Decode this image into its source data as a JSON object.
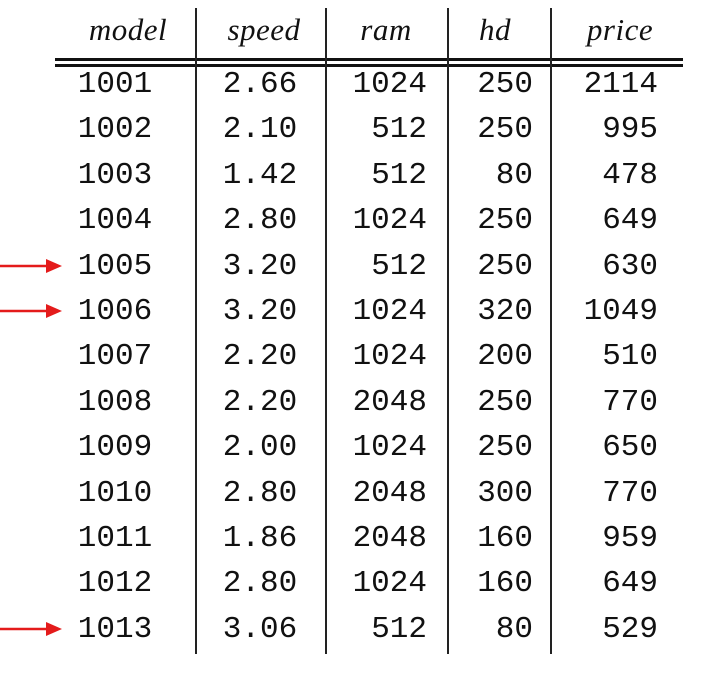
{
  "table": {
    "columns": [
      "model",
      "speed",
      "ram",
      "hd",
      "price"
    ],
    "rows": [
      {
        "model": "1001",
        "speed": "2.66",
        "ram": "1024",
        "hd": "250",
        "price": "2114",
        "marked": false
      },
      {
        "model": "1002",
        "speed": "2.10",
        "ram": "512",
        "hd": "250",
        "price": "995",
        "marked": false
      },
      {
        "model": "1003",
        "speed": "1.42",
        "ram": "512",
        "hd": "80",
        "price": "478",
        "marked": false
      },
      {
        "model": "1004",
        "speed": "2.80",
        "ram": "1024",
        "hd": "250",
        "price": "649",
        "marked": false
      },
      {
        "model": "1005",
        "speed": "3.20",
        "ram": "512",
        "hd": "250",
        "price": "630",
        "marked": true
      },
      {
        "model": "1006",
        "speed": "3.20",
        "ram": "1024",
        "hd": "320",
        "price": "1049",
        "marked": true
      },
      {
        "model": "1007",
        "speed": "2.20",
        "ram": "1024",
        "hd": "200",
        "price": "510",
        "marked": false
      },
      {
        "model": "1008",
        "speed": "2.20",
        "ram": "2048",
        "hd": "250",
        "price": "770",
        "marked": false
      },
      {
        "model": "1009",
        "speed": "2.00",
        "ram": "1024",
        "hd": "250",
        "price": "650",
        "marked": false
      },
      {
        "model": "1010",
        "speed": "2.80",
        "ram": "2048",
        "hd": "300",
        "price": "770",
        "marked": false
      },
      {
        "model": "1011",
        "speed": "1.86",
        "ram": "2048",
        "hd": "160",
        "price": "959",
        "marked": false
      },
      {
        "model": "1012",
        "speed": "2.80",
        "ram": "1024",
        "hd": "160",
        "price": "649",
        "marked": false
      },
      {
        "model": "1013",
        "speed": "3.06",
        "ram": "512",
        "hd": "80",
        "price": "529",
        "marked": true
      }
    ]
  },
  "colors": {
    "text": "#111111",
    "arrow": "#e41b1b",
    "background": "#ffffff"
  },
  "icons": {
    "row_marker": "red-right-arrow-icon"
  }
}
